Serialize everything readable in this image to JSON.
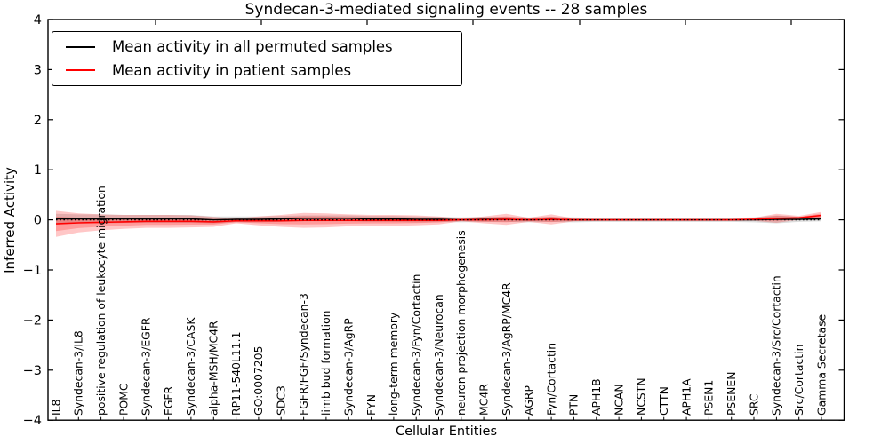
{
  "chart_data": {
    "type": "line",
    "title": "Syndecan-3-mediated signaling events -- 28 samples",
    "xlabel": "Cellular Entities",
    "ylabel": "Inferred Activity",
    "ylim": [
      -4,
      4
    ],
    "yticks": [
      -4,
      -3,
      -2,
      -1,
      0,
      1,
      2,
      3,
      4
    ],
    "grid": false,
    "legend_position": "upper left",
    "categories": [
      "IL8",
      "Syndecan-3/IL8",
      "positive regulation of leukocyte migration",
      "POMC",
      "Syndecan-3/EGFR",
      "EGFR",
      "Syndecan-3/CASK",
      "alpha-MSH/MC4R",
      "RP11-540L11.1",
      "GO:0007205",
      "SDC3",
      "FGFR/FGF/Syndecan-3",
      "limb bud formation",
      "Syndecan-3/AgRP",
      "FYN",
      "long-term memory",
      "Syndecan-3/Fyn/Cortactin",
      "Syndecan-3/Neurocan",
      "neuron projection morphogenesis",
      "MC4R",
      "Syndecan-3/AgRP/MC4R",
      "AGRP",
      "Fyn/Cortactin",
      "PTN",
      "APH1B",
      "NCAN",
      "NCSTN",
      "CTTN",
      "APH1A",
      "PSEN1",
      "PSENEN",
      "SRC",
      "Syndecan-3/Src/Cortactin",
      "Src/Cortactin",
      "Gamma Secretase"
    ],
    "series": [
      {
        "name": "Mean activity in all permuted samples",
        "color": "#000000",
        "band_color": "rgba(115,115,115,0.25)",
        "values": [
          0.02,
          0.02,
          0.02,
          0.02,
          0.02,
          0.02,
          0.02,
          0.0,
          0.01,
          0.01,
          0.02,
          0.03,
          0.03,
          0.03,
          0.02,
          0.02,
          0.01,
          0.01,
          0.0,
          0.01,
          0.01,
          0.0,
          0.01,
          0.0,
          0.0,
          0.0,
          0.0,
          0.0,
          0.0,
          0.0,
          0.0,
          0.0,
          0.01,
          0.01,
          0.02
        ],
        "band_halfwidth": [
          0.1,
          0.09,
          0.09,
          0.08,
          0.08,
          0.08,
          0.08,
          0.07,
          0.06,
          0.06,
          0.06,
          0.06,
          0.06,
          0.06,
          0.06,
          0.06,
          0.06,
          0.05,
          0.05,
          0.05,
          0.05,
          0.05,
          0.05,
          0.05,
          0.04,
          0.04,
          0.04,
          0.04,
          0.04,
          0.04,
          0.04,
          0.05,
          0.08,
          0.05,
          0.05
        ]
      },
      {
        "name": "Mean activity in patient samples",
        "color": "#ff0000",
        "band_color": "rgba(255,0,0,0.22)",
        "values": [
          -0.08,
          -0.06,
          -0.05,
          -0.04,
          -0.03,
          -0.03,
          -0.03,
          -0.04,
          -0.02,
          -0.02,
          -0.02,
          -0.01,
          -0.01,
          -0.01,
          -0.01,
          -0.01,
          -0.01,
          -0.01,
          0.0,
          0.0,
          0.01,
          0.0,
          0.01,
          0.0,
          0.0,
          0.0,
          0.0,
          0.0,
          0.0,
          0.0,
          0.0,
          0.01,
          0.03,
          0.04,
          0.09
        ],
        "band_halfwidth": [
          0.26,
          0.19,
          0.16,
          0.14,
          0.13,
          0.13,
          0.12,
          0.1,
          0.05,
          0.09,
          0.12,
          0.15,
          0.14,
          0.12,
          0.11,
          0.11,
          0.1,
          0.08,
          0.03,
          0.07,
          0.11,
          0.04,
          0.1,
          0.03,
          0.02,
          0.02,
          0.02,
          0.02,
          0.02,
          0.02,
          0.02,
          0.03,
          0.09,
          0.04,
          0.07
        ]
      }
    ],
    "reference_line": {
      "y": 0,
      "style": "dotted",
      "color": "#000000"
    }
  }
}
